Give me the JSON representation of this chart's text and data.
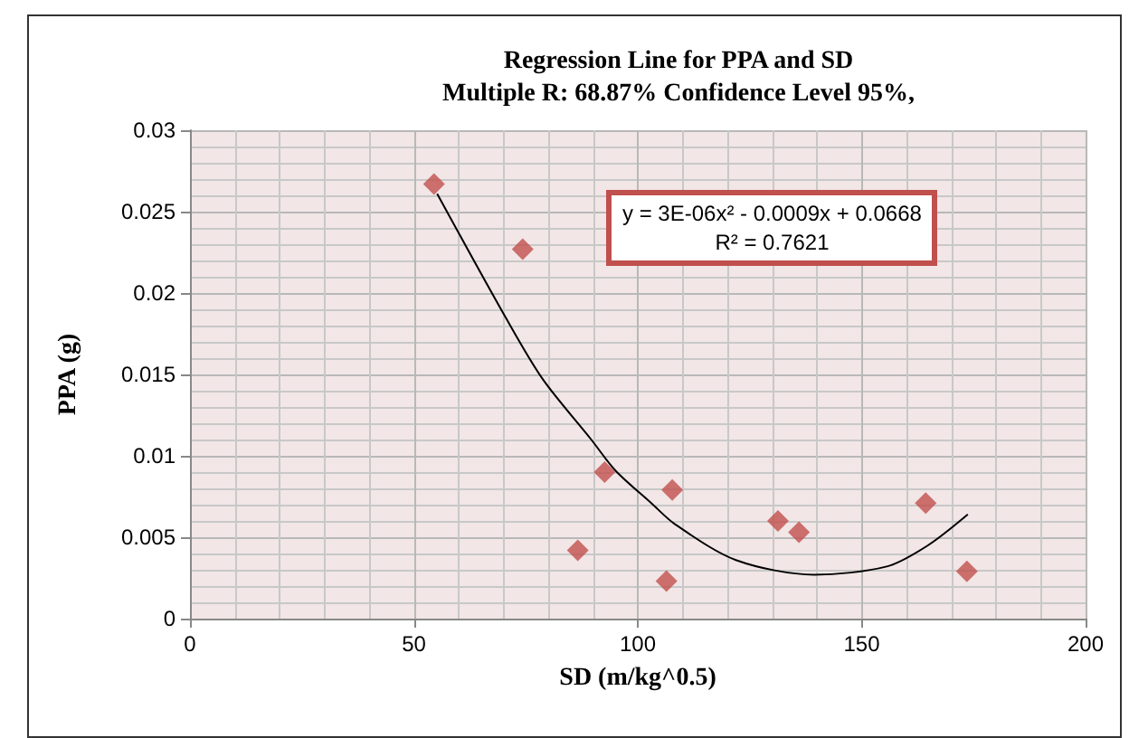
{
  "chart_data": {
    "type": "scatter",
    "title": "Regression Line for PPA and SD",
    "subtitle": "Multiple R: 68.87% Confidence Level 95%,",
    "xlabel": "SD (m/kg^0.5)",
    "ylabel": "PPA (g)",
    "annotations": [
      "y = 3E-06x² - 0.0009x + 0.0668",
      "R² = 0.7621"
    ],
    "xlim": [
      0,
      200
    ],
    "xticks": [
      0,
      50,
      100,
      150,
      200
    ],
    "ylim": [
      0,
      0.03
    ],
    "yticks": [
      0,
      0.005,
      0.01,
      0.015,
      0.02,
      0.025,
      0.03
    ],
    "grid": true,
    "marker": "diamond",
    "series": [
      {
        "color": "#c0504d",
        "x": [
          54.5,
          74.3,
          86.6,
          92.6,
          106.4,
          107.7,
          131.3,
          136,
          164.3,
          173.5
        ],
        "values": [
          0.0267,
          0.0227,
          0.0042,
          0.009,
          0.0023,
          0.0079,
          0.006,
          0.0053,
          0.0071,
          0.0029
        ]
      },
      {
        "type": "line",
        "color": "#000000",
        "marker": "none",
        "x": [
          55.2,
          70.7,
          78.8,
          89.6,
          95,
          103,
          108.3,
          121.9,
          139.4,
          155.6,
          164.8,
          173.7
        ],
        "values": [
          0.0261,
          0.0184,
          0.0147,
          0.011,
          0.0091,
          0.0071,
          0.0058,
          0.0036,
          0.0027,
          0.0032,
          0.0045,
          0.0064
        ]
      }
    ]
  }
}
